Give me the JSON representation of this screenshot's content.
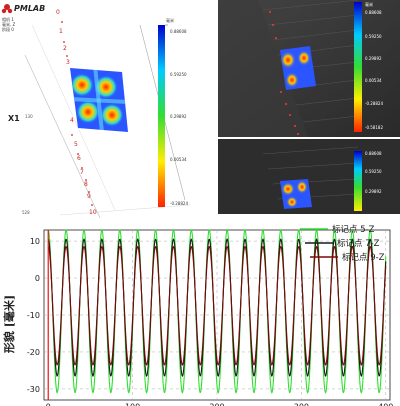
{
  "left_view": {
    "logo_text": "PMLAB",
    "info_lines": [
      "相机 1",
      "毫米, Z",
      "阶段 0"
    ],
    "x_label": "X1",
    "scale_left": "130",
    "scale_bottom_left": "528",
    "marker_numbers": [
      "0",
      "1",
      "2",
      "3",
      "4",
      "5",
      "6",
      "7",
      "8",
      "9",
      "10"
    ],
    "colorbar_unit": "毫米",
    "colorbar_ticks": [
      "0.88608",
      "0.59250",
      "0.29892",
      "0.00534",
      "-0.28824"
    ]
  },
  "camera_view_1": {
    "colorbar_unit": "毫米",
    "colorbar_ticks": [
      "0.88608",
      "0.59250",
      "0.29892",
      "0.00534",
      "-0.28824",
      "-0.58182"
    ]
  },
  "camera_view_2": {
    "colorbar_ticks": [
      "0.88608",
      "0.59250",
      "0.29892"
    ]
  },
  "chart_data": {
    "type": "line",
    "title": "",
    "xlabel": "",
    "ylabel": "形貌 [毫米]",
    "xlim": [
      -5,
      405
    ],
    "ylim": [
      -33,
      13
    ],
    "x_ticks": [
      0,
      100,
      200,
      300,
      400
    ],
    "y_ticks": [
      10,
      0,
      -10,
      -20,
      -30
    ],
    "grid": true,
    "legend_position": "top-right",
    "cursor_x": 0,
    "series": [
      {
        "name": "标记点 5-Z",
        "color": "#33dd33",
        "center": -9,
        "amplitude": 22,
        "period": 21.2,
        "phase": 10.6
      },
      {
        "name": "标记点 7-Z",
        "color": "#1a1a1a",
        "center": -8,
        "amplitude": 18.5,
        "period": 21.2,
        "phase": 10.6
      },
      {
        "name": "标记点 9-Z",
        "color": "#7a0a0a",
        "center": -7.5,
        "amplitude": 16,
        "period": 21.2,
        "phase": 10.6
      }
    ]
  }
}
